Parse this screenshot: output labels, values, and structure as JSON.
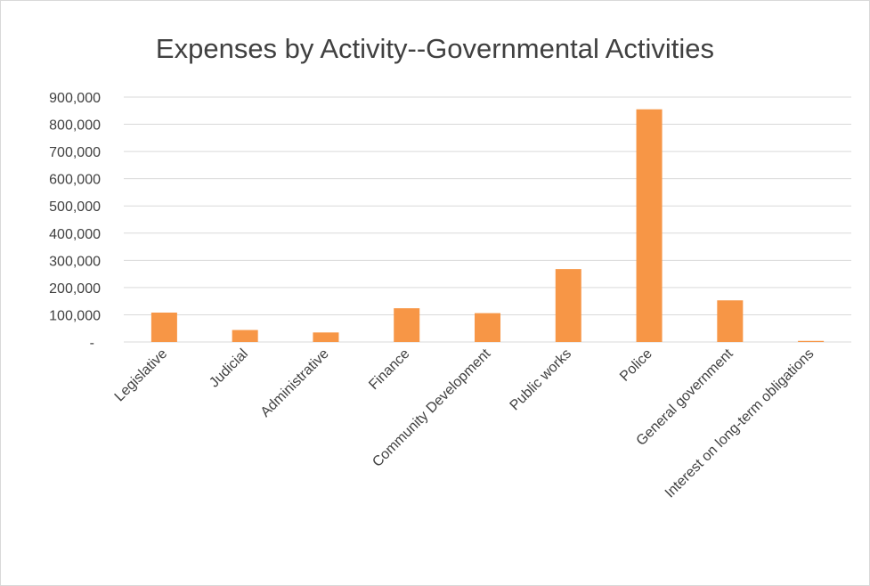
{
  "chart_data": {
    "type": "bar",
    "title": "Expenses by Activity--Governmental Activities",
    "xlabel": "",
    "ylabel": "",
    "ylim": [
      0,
      900000
    ],
    "yticks": [
      0,
      100000,
      200000,
      300000,
      400000,
      500000,
      600000,
      700000,
      800000,
      900000
    ],
    "ytick_labels": [
      "-",
      "100,000",
      "200,000",
      "300,000",
      "400,000",
      "500,000",
      "600,000",
      "700,000",
      "800,000",
      "900,000"
    ],
    "categories": [
      "Legislative",
      "Judicial",
      "Administrative",
      "Finance",
      "Community Development",
      "Public works",
      "Police",
      "General government",
      "Interest on long-term obligations"
    ],
    "values": [
      108000,
      44000,
      35000,
      124000,
      106000,
      268000,
      855000,
      153000,
      4000
    ],
    "grid": true,
    "legend": "none",
    "bar_color": "#f79646",
    "grid_color": "#d9d9d9"
  }
}
